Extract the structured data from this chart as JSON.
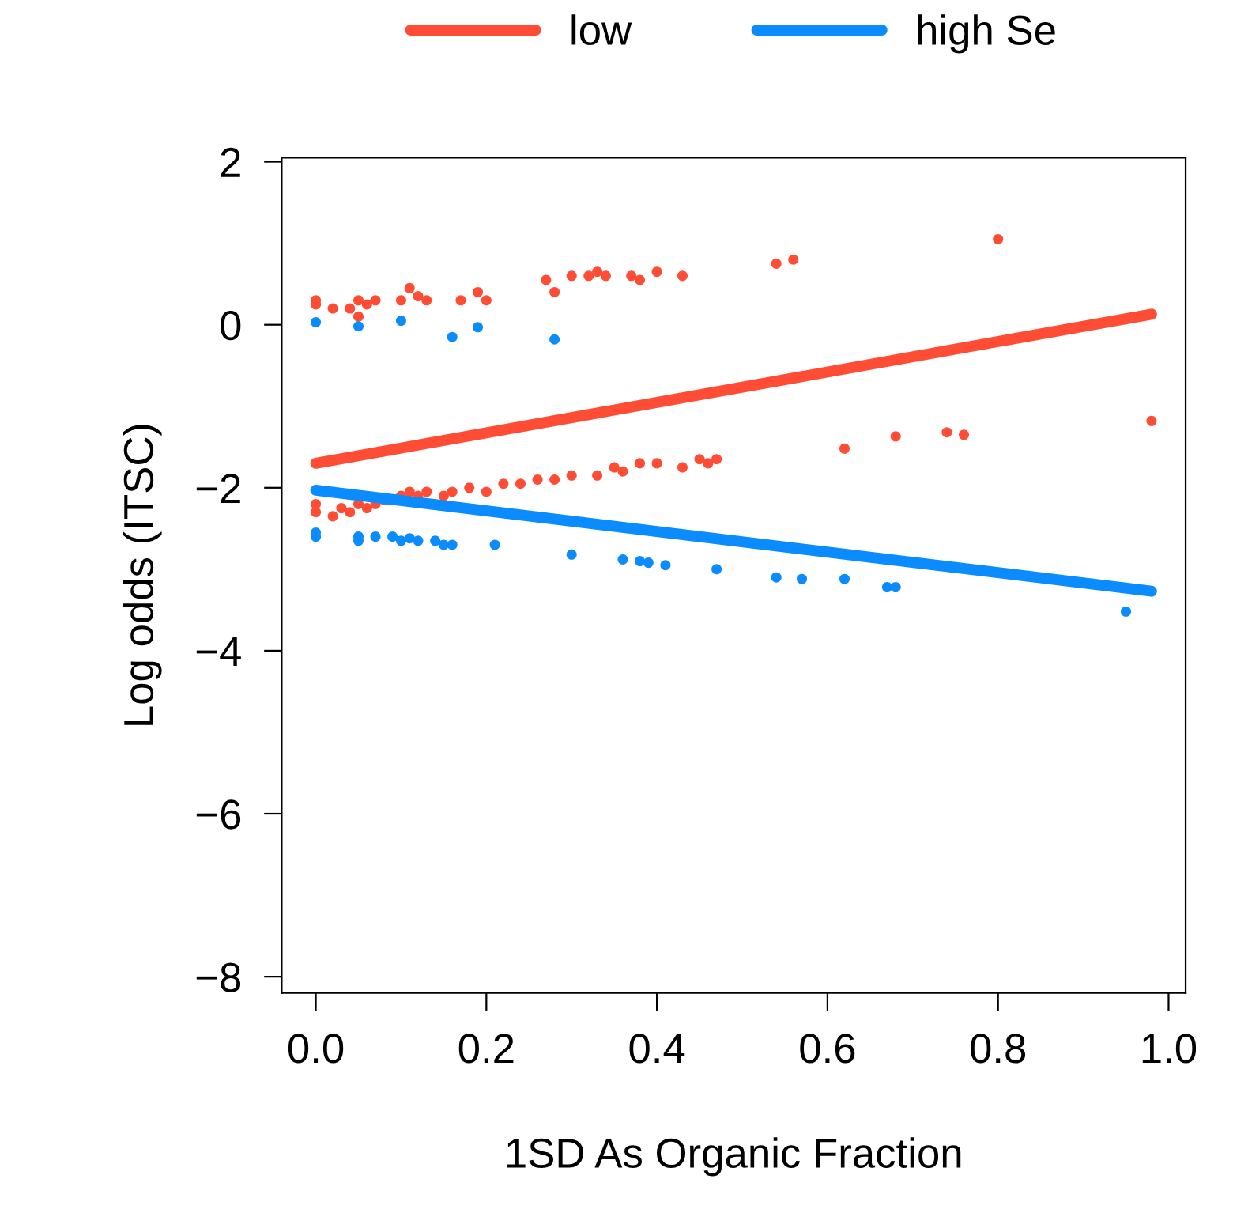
{
  "chart_data": {
    "type": "scatter",
    "xlabel": "1SD As Organic Fraction",
    "ylabel": "Log odds (ITSC)",
    "xlim": [
      -0.04,
      1.02
    ],
    "ylim": [
      -8.2,
      2.05
    ],
    "xticks": [
      {
        "value": 0,
        "label": "0.0"
      },
      0.2,
      0.4,
      0.6,
      0.8,
      {
        "value": 1,
        "label": "1.0"
      }
    ],
    "yticks": [
      -8,
      -6,
      -4,
      -2,
      0,
      2
    ],
    "grid": false,
    "legend": "top",
    "series": [
      {
        "marker": "circle",
        "color": "#ff4d35",
        "x": [
          0,
          0,
          0.02,
          0.04,
          0.05,
          0.05,
          0.06,
          0.07,
          0.1,
          0.11,
          0.12,
          0.13,
          0.17,
          0.19,
          0.2,
          0.27,
          0.28,
          0.3,
          0.32,
          0.33,
          0.34,
          0.37,
          0.38,
          0.4,
          0.43,
          0.54,
          0.56,
          0.8,
          0,
          0,
          0.02,
          0.03,
          0.04,
          0.05,
          0.06,
          0.07,
          0.08,
          0.1,
          0.11,
          0.12,
          0.13,
          0.15,
          0.16,
          0.18,
          0.2,
          0.22,
          0.24,
          0.26,
          0.28,
          0.3,
          0.33,
          0.35,
          0.36,
          0.38,
          0.4,
          0.43,
          0.45,
          0.46,
          0.47,
          0.62,
          0.68,
          0.74,
          0.76,
          0.98
        ],
        "values": [
          0.3,
          0.25,
          0.2,
          0.2,
          0.3,
          0.1,
          0.25,
          0.3,
          0.3,
          0.45,
          0.35,
          0.3,
          0.3,
          0.4,
          0.3,
          0.55,
          0.4,
          0.6,
          0.6,
          0.65,
          0.6,
          0.6,
          0.55,
          0.65,
          0.6,
          0.75,
          0.8,
          1.05,
          -2.3,
          -2.2,
          -2.35,
          -2.25,
          -2.3,
          -2.2,
          -2.25,
          -2.2,
          -2.15,
          -2.1,
          -2.05,
          -2.1,
          -2.05,
          -2.1,
          -2.05,
          -2.0,
          -2.05,
          -1.95,
          -1.95,
          -1.9,
          -1.9,
          -1.85,
          -1.85,
          -1.75,
          -1.8,
          -1.7,
          -1.7,
          -1.75,
          -1.65,
          -1.7,
          -1.65,
          -1.52,
          -1.37,
          -1.32,
          -1.35,
          -1.18
        ]
      },
      {
        "marker": "circle",
        "color": "#0a8cff",
        "x": [
          0,
          0.05,
          0.1,
          0.16,
          0.19,
          0.28,
          0,
          0,
          0.05,
          0.05,
          0.07,
          0.09,
          0.1,
          0.11,
          0.12,
          0.14,
          0.15,
          0.16,
          0.21,
          0.3,
          0.36,
          0.38,
          0.39,
          0.41,
          0.47,
          0.54,
          0.57,
          0.62,
          0.67,
          0.68,
          0.95
        ],
        "values": [
          0.03,
          -0.02,
          0.05,
          -0.15,
          -0.03,
          -0.18,
          -2.55,
          -2.6,
          -2.6,
          -2.65,
          -2.6,
          -2.6,
          -2.65,
          -2.62,
          -2.65,
          -2.65,
          -2.7,
          -2.7,
          -2.7,
          -2.82,
          -2.88,
          -2.9,
          -2.92,
          -2.95,
          -3.0,
          -3.1,
          -3.12,
          -3.12,
          -3.22,
          -3.22,
          -3.52
        ]
      },
      {
        "type": "line",
        "marker": "none",
        "name": "low",
        "color": "#ff4d35",
        "x": [
          0,
          0.98
        ],
        "values": [
          -1.7,
          0.13
        ]
      },
      {
        "type": "line",
        "marker": "none",
        "name": "high Se",
        "color": "#0a8cff",
        "x": [
          0,
          0.98
        ],
        "values": [
          -2.03,
          -3.27
        ]
      }
    ]
  }
}
